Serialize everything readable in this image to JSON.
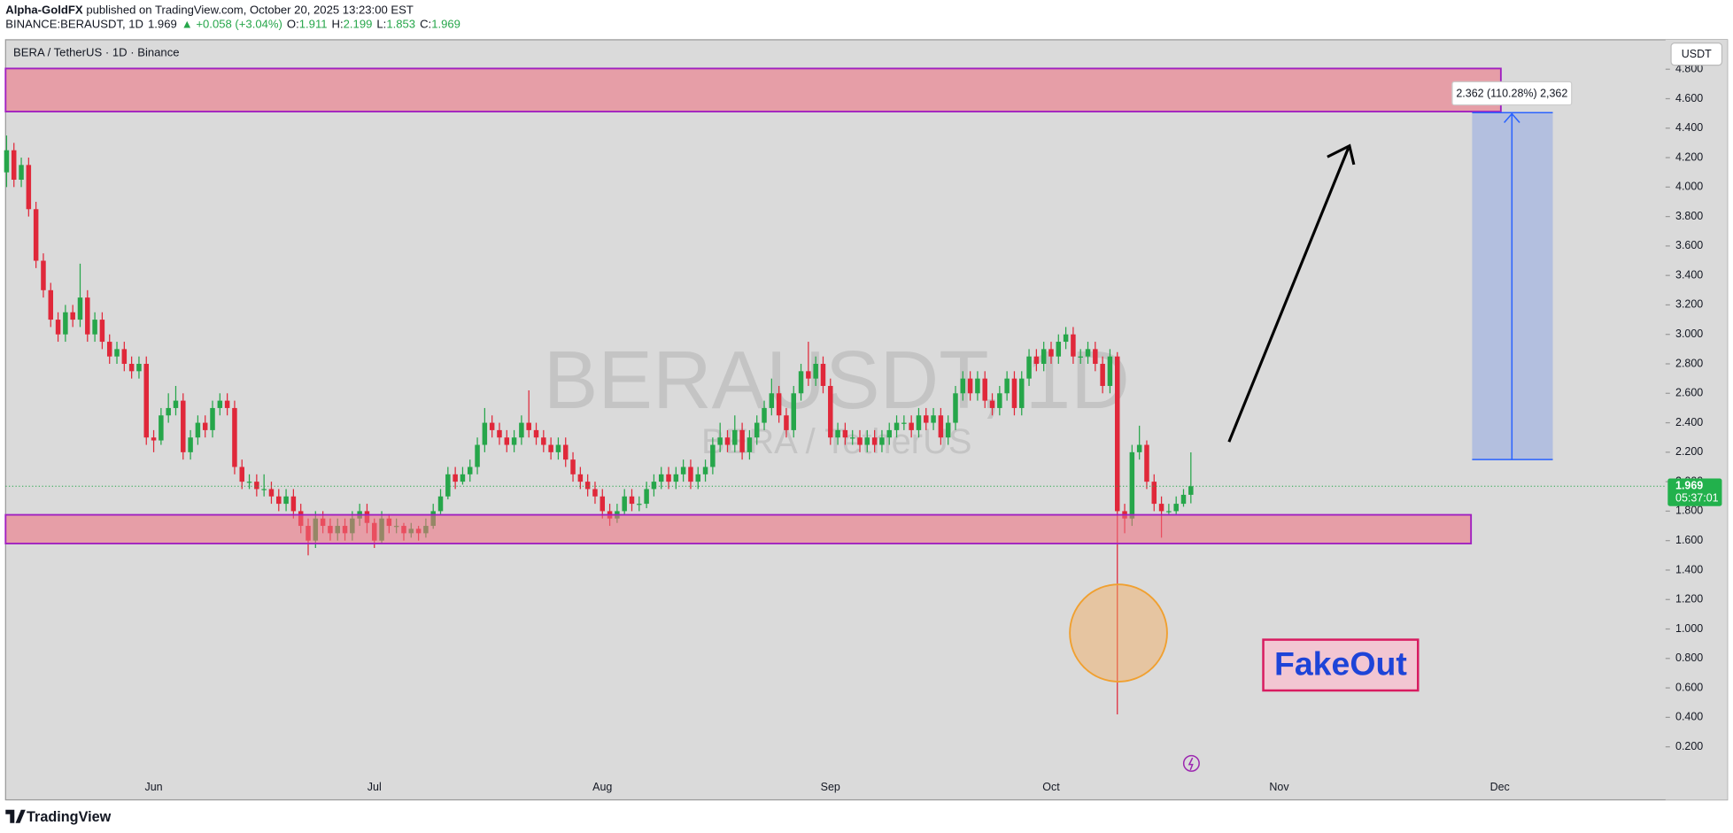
{
  "header": {
    "publisher": "Alpha-GoldFX",
    "published": "published on TradingView.com, October 20, 2025 13:23:00 EST",
    "symbol": "BINANCE:BERAUSDT, 1D",
    "change": "▲ +0.058 (+3.04%)",
    "ohlc_labels": [
      "O:",
      "H:",
      "L:",
      "C:"
    ]
  },
  "chart_data": {
    "type": "candlestick",
    "title": "BERA / TetherUS · 1D · Binance",
    "watermark": "BERAUSDT, 1D",
    "watermark_subtitle": "BERA / TetherUS",
    "currency": "USDT",
    "up_color": "#26a64a",
    "down_color": "#e0283a",
    "categories": [
      null,
      null,
      null,
      null,
      null,
      null,
      null,
      null,
      null,
      null,
      null,
      null,
      null,
      null,
      null,
      null,
      null,
      null,
      null,
      null,
      "Jun",
      null,
      null,
      null,
      null,
      null,
      null,
      null,
      null,
      null,
      null,
      null,
      null,
      null,
      null,
      null,
      null,
      null,
      null,
      null,
      null,
      null,
      null,
      null,
      null,
      null,
      null,
      null,
      null,
      null,
      "Jul",
      null,
      null,
      null,
      null,
      null,
      null,
      null,
      null,
      null,
      null,
      null,
      null,
      null,
      null,
      null,
      null,
      null,
      null,
      null,
      null,
      null,
      null,
      null,
      null,
      null,
      null,
      null,
      null,
      null,
      null,
      "Aug",
      null,
      null,
      null,
      null,
      null,
      null,
      null,
      null,
      null,
      null,
      null,
      null,
      null,
      null,
      null,
      null,
      null,
      null,
      null,
      null,
      null,
      null,
      null,
      null,
      null,
      null,
      null,
      null,
      null,
      null,
      "Sep",
      null,
      null,
      null,
      null,
      null,
      null,
      null,
      null,
      null,
      null,
      null,
      null,
      null,
      null,
      null,
      null,
      null,
      null,
      null,
      null,
      null,
      null,
      null,
      null,
      null,
      null,
      null,
      null,
      null,
      "Oct",
      null,
      null,
      null,
      null,
      null,
      null,
      null,
      null,
      null,
      null,
      null,
      null,
      null,
      null,
      null,
      null,
      null,
      null,
      null,
      null,
      null,
      null,
      null,
      null,
      null,
      null,
      null,
      null,
      null,
      null,
      "Nov",
      null,
      null,
      null,
      null,
      null,
      null,
      null,
      null,
      null,
      null,
      null,
      null,
      null,
      null,
      null,
      null,
      null,
      null,
      null,
      null,
      null,
      null,
      null,
      null,
      null,
      null,
      null,
      null,
      null,
      "Dec"
    ],
    "ohlc": [
      [
        4.1,
        4.35,
        4.0,
        4.25
      ],
      [
        4.25,
        4.3,
        4.0,
        4.05
      ],
      [
        4.05,
        4.2,
        4.0,
        4.15
      ],
      [
        4.15,
        4.2,
        3.8,
        3.85
      ],
      [
        3.85,
        3.9,
        3.45,
        3.5
      ],
      [
        3.5,
        3.55,
        3.25,
        3.3
      ],
      [
        3.3,
        3.35,
        3.05,
        3.1
      ],
      [
        3.1,
        3.15,
        2.95,
        3.0
      ],
      [
        3.0,
        3.2,
        2.95,
        3.15
      ],
      [
        3.15,
        3.2,
        3.05,
        3.1
      ],
      [
        3.1,
        3.48,
        3.05,
        3.25
      ],
      [
        3.25,
        3.3,
        2.95,
        3.0
      ],
      [
        3.0,
        3.15,
        2.95,
        3.1
      ],
      [
        3.1,
        3.15,
        2.9,
        2.95
      ],
      [
        2.95,
        3.0,
        2.8,
        2.85
      ],
      [
        2.85,
        2.95,
        2.8,
        2.9
      ],
      [
        2.9,
        2.95,
        2.75,
        2.8
      ],
      [
        2.8,
        2.85,
        2.7,
        2.75
      ],
      [
        2.75,
        2.85,
        2.7,
        2.8
      ],
      [
        2.8,
        2.85,
        2.25,
        2.3
      ],
      [
        2.3,
        2.35,
        2.2,
        2.28
      ],
      [
        2.28,
        2.5,
        2.25,
        2.45
      ],
      [
        2.45,
        2.6,
        2.4,
        2.5
      ],
      [
        2.5,
        2.65,
        2.45,
        2.55
      ],
      [
        2.55,
        2.6,
        2.15,
        2.2
      ],
      [
        2.2,
        2.35,
        2.15,
        2.3
      ],
      [
        2.3,
        2.45,
        2.25,
        2.4
      ],
      [
        2.4,
        2.45,
        2.3,
        2.35
      ],
      [
        2.35,
        2.55,
        2.3,
        2.5
      ],
      [
        2.5,
        2.6,
        2.45,
        2.55
      ],
      [
        2.55,
        2.6,
        2.45,
        2.5
      ],
      [
        2.5,
        2.55,
        2.05,
        2.1
      ],
      [
        2.1,
        2.15,
        1.95,
        2.0
      ],
      [
        2.0,
        2.05,
        1.95,
        2.0
      ],
      [
        2.0,
        2.05,
        1.9,
        1.95
      ],
      [
        1.95,
        2.05,
        1.9,
        1.95
      ],
      [
        1.95,
        2.0,
        1.85,
        1.9
      ],
      [
        1.9,
        1.95,
        1.8,
        1.85
      ],
      [
        1.85,
        1.95,
        1.8,
        1.9
      ],
      [
        1.9,
        1.95,
        1.75,
        1.8
      ],
      [
        1.8,
        1.85,
        1.65,
        1.7
      ],
      [
        1.7,
        1.75,
        1.5,
        1.6
      ],
      [
        1.6,
        1.8,
        1.55,
        1.75
      ],
      [
        1.75,
        1.8,
        1.65,
        1.7
      ],
      [
        1.7,
        1.75,
        1.6,
        1.65
      ],
      [
        1.65,
        1.75,
        1.6,
        1.7
      ],
      [
        1.7,
        1.75,
        1.6,
        1.65
      ],
      [
        1.65,
        1.8,
        1.6,
        1.75
      ],
      [
        1.75,
        1.85,
        1.7,
        1.8
      ],
      [
        1.8,
        1.85,
        1.65,
        1.72
      ],
      [
        1.72,
        1.75,
        1.55,
        1.6
      ],
      [
        1.6,
        1.8,
        1.58,
        1.75
      ],
      [
        1.75,
        1.78,
        1.65,
        1.7
      ],
      [
        1.7,
        1.75,
        1.65,
        1.7
      ],
      [
        1.7,
        1.72,
        1.6,
        1.65
      ],
      [
        1.65,
        1.72,
        1.62,
        1.68
      ],
      [
        1.68,
        1.7,
        1.6,
        1.65
      ],
      [
        1.65,
        1.75,
        1.62,
        1.7
      ],
      [
        1.7,
        1.85,
        1.68,
        1.8
      ],
      [
        1.8,
        1.95,
        1.78,
        1.9
      ],
      [
        1.9,
        2.1,
        1.88,
        2.05
      ],
      [
        2.05,
        2.1,
        1.95,
        2.0
      ],
      [
        2.0,
        2.1,
        1.98,
        2.05
      ],
      [
        2.05,
        2.15,
        2.0,
        2.1
      ],
      [
        2.1,
        2.3,
        2.05,
        2.25
      ],
      [
        2.25,
        2.5,
        2.2,
        2.4
      ],
      [
        2.4,
        2.45,
        2.3,
        2.35
      ],
      [
        2.35,
        2.4,
        2.25,
        2.3
      ],
      [
        2.3,
        2.35,
        2.2,
        2.25
      ],
      [
        2.25,
        2.35,
        2.2,
        2.3
      ],
      [
        2.3,
        2.45,
        2.25,
        2.4
      ],
      [
        2.4,
        2.62,
        2.3,
        2.35
      ],
      [
        2.35,
        2.4,
        2.25,
        2.3
      ],
      [
        2.3,
        2.35,
        2.2,
        2.25
      ],
      [
        2.25,
        2.3,
        2.15,
        2.2
      ],
      [
        2.2,
        2.3,
        2.15,
        2.25
      ],
      [
        2.25,
        2.3,
        2.1,
        2.15
      ],
      [
        2.15,
        2.2,
        2.0,
        2.05
      ],
      [
        2.05,
        2.1,
        1.95,
        2.0
      ],
      [
        2.0,
        2.05,
        1.9,
        1.95
      ],
      [
        1.95,
        2.0,
        1.85,
        1.9
      ],
      [
        1.9,
        1.95,
        1.75,
        1.8
      ],
      [
        1.8,
        1.85,
        1.7,
        1.75
      ],
      [
        1.75,
        1.85,
        1.72,
        1.8
      ],
      [
        1.8,
        1.95,
        1.78,
        1.9
      ],
      [
        1.9,
        1.95,
        1.8,
        1.85
      ],
      [
        1.85,
        1.9,
        1.8,
        1.85
      ],
      [
        1.85,
        2.0,
        1.82,
        1.95
      ],
      [
        1.95,
        2.05,
        1.9,
        2.0
      ],
      [
        2.0,
        2.1,
        1.95,
        2.05
      ],
      [
        2.05,
        2.1,
        1.95,
        2.0
      ],
      [
        2.0,
        2.1,
        1.95,
        2.05
      ],
      [
        2.05,
        2.15,
        2.0,
        2.1
      ],
      [
        2.1,
        2.15,
        1.95,
        2.0
      ],
      [
        2.0,
        2.1,
        1.95,
        2.05
      ],
      [
        2.05,
        2.15,
        2.0,
        2.1
      ],
      [
        2.1,
        2.3,
        2.05,
        2.25
      ],
      [
        2.25,
        2.4,
        2.2,
        2.3
      ],
      [
        2.3,
        2.35,
        2.2,
        2.25
      ],
      [
        2.25,
        2.45,
        2.2,
        2.35
      ],
      [
        2.35,
        2.4,
        2.15,
        2.2
      ],
      [
        2.2,
        2.35,
        2.15,
        2.3
      ],
      [
        2.3,
        2.45,
        2.25,
        2.4
      ],
      [
        2.4,
        2.55,
        2.35,
        2.5
      ],
      [
        2.5,
        2.7,
        2.45,
        2.6
      ],
      [
        2.6,
        2.65,
        2.4,
        2.45
      ],
      [
        2.45,
        2.5,
        2.3,
        2.35
      ],
      [
        2.35,
        2.65,
        2.3,
        2.6
      ],
      [
        2.6,
        2.8,
        2.55,
        2.75
      ],
      [
        2.75,
        2.95,
        2.65,
        2.7
      ],
      [
        2.7,
        2.85,
        2.65,
        2.8
      ],
      [
        2.8,
        2.85,
        2.6,
        2.65
      ],
      [
        2.65,
        2.7,
        2.25,
        2.3
      ],
      [
        2.3,
        2.4,
        2.25,
        2.35
      ],
      [
        2.35,
        2.4,
        2.25,
        2.3
      ],
      [
        2.3,
        2.35,
        2.25,
        2.3
      ],
      [
        2.3,
        2.35,
        2.2,
        2.25
      ],
      [
        2.25,
        2.35,
        2.2,
        2.3
      ],
      [
        2.3,
        2.35,
        2.2,
        2.25
      ],
      [
        2.25,
        2.35,
        2.2,
        2.3
      ],
      [
        2.3,
        2.4,
        2.25,
        2.35
      ],
      [
        2.35,
        2.45,
        2.3,
        2.4
      ],
      [
        2.4,
        2.45,
        2.35,
        2.4
      ],
      [
        2.4,
        2.45,
        2.3,
        2.35
      ],
      [
        2.35,
        2.5,
        2.3,
        2.45
      ],
      [
        2.45,
        2.5,
        2.35,
        2.4
      ],
      [
        2.4,
        2.5,
        2.35,
        2.45
      ],
      [
        2.45,
        2.5,
        2.25,
        2.3
      ],
      [
        2.3,
        2.45,
        2.25,
        2.4
      ],
      [
        2.4,
        2.65,
        2.35,
        2.6
      ],
      [
        2.6,
        2.75,
        2.55,
        2.7
      ],
      [
        2.7,
        2.75,
        2.55,
        2.6
      ],
      [
        2.6,
        2.75,
        2.55,
        2.7
      ],
      [
        2.7,
        2.75,
        2.5,
        2.55
      ],
      [
        2.55,
        2.6,
        2.45,
        2.5
      ],
      [
        2.5,
        2.65,
        2.45,
        2.6
      ],
      [
        2.6,
        2.75,
        2.55,
        2.7
      ],
      [
        2.7,
        2.75,
        2.45,
        2.5
      ],
      [
        2.5,
        2.75,
        2.45,
        2.7
      ],
      [
        2.7,
        2.9,
        2.65,
        2.85
      ],
      [
        2.85,
        2.9,
        2.75,
        2.8
      ],
      [
        2.8,
        2.95,
        2.75,
        2.9
      ],
      [
        2.9,
        2.95,
        2.8,
        2.85
      ],
      [
        2.85,
        3.0,
        2.8,
        2.95
      ],
      [
        2.95,
        3.05,
        2.9,
        3.0
      ],
      [
        3.0,
        3.05,
        2.8,
        2.85
      ],
      [
        2.85,
        2.9,
        2.8,
        2.85
      ],
      [
        2.85,
        2.95,
        2.8,
        2.9
      ],
      [
        2.9,
        2.95,
        2.75,
        2.8
      ],
      [
        2.8,
        2.85,
        2.6,
        2.65
      ],
      [
        2.65,
        2.9,
        2.6,
        2.85
      ],
      [
        2.85,
        2.88,
        0.42,
        1.8
      ],
      [
        1.8,
        1.85,
        1.65,
        1.75
      ],
      [
        1.75,
        2.25,
        1.7,
        2.2
      ],
      [
        2.2,
        2.38,
        2.15,
        2.25
      ],
      [
        2.25,
        2.28,
        1.95,
        2.0
      ],
      [
        2.0,
        2.05,
        1.8,
        1.85
      ],
      [
        1.85,
        1.9,
        1.62,
        1.8
      ],
      [
        1.8,
        1.85,
        1.78,
        1.8
      ],
      [
        1.8,
        1.9,
        1.78,
        1.85
      ],
      [
        1.85,
        1.95,
        1.83,
        1.911
      ],
      [
        1.911,
        2.199,
        1.853,
        1.969
      ],
      null,
      null,
      null,
      null,
      null,
      null,
      null,
      null,
      null,
      null,
      null,
      null,
      null,
      null,
      null,
      null,
      null,
      null,
      null,
      null,
      null,
      null,
      null,
      null,
      null,
      null,
      null,
      null,
      null,
      null,
      null,
      null,
      null,
      null,
      null,
      null,
      null,
      null,
      null,
      null,
      null,
      null
    ],
    "ylim": [
      -0.16,
      5.0
    ],
    "yticks": [
      {
        "value": 0.2,
        "label": "0.200"
      },
      {
        "value": 0.4,
        "label": "0.400"
      },
      {
        "value": 0.6,
        "label": "0.600"
      },
      {
        "value": 0.8,
        "label": "0.800"
      },
      {
        "value": 1.0,
        "label": "1.000"
      },
      {
        "value": 1.2,
        "label": "1.200"
      },
      {
        "value": 1.4,
        "label": "1.400"
      },
      {
        "value": 1.6,
        "label": "1.600"
      },
      {
        "value": 1.8,
        "label": "1.800"
      },
      {
        "value": 2.0,
        "label": "2.000"
      },
      {
        "value": 2.2,
        "label": "2.200"
      },
      {
        "value": 2.4,
        "label": "2.400"
      },
      {
        "value": 2.6,
        "label": "2.600"
      },
      {
        "value": 2.8,
        "label": "2.800"
      },
      {
        "value": 3.0,
        "label": "3.000"
      },
      {
        "value": 3.2,
        "label": "3.200"
      },
      {
        "value": 3.4,
        "label": "3.400"
      },
      {
        "value": 3.6,
        "label": "3.600"
      },
      {
        "value": 3.8,
        "label": "3.800"
      },
      {
        "value": 4.0,
        "label": "4.000"
      },
      {
        "value": 4.2,
        "label": "4.200"
      },
      {
        "value": 4.4,
        "label": "4.400"
      },
      {
        "value": 4.6,
        "label": "4.600"
      },
      {
        "value": 4.8,
        "label": "4.800"
      }
    ],
    "countdown": "05:37:01",
    "annotations": {
      "measure": "2.362 (110.28%) 2,362",
      "label": "FakeOut"
    }
  },
  "footer": {
    "brand": "TradingView"
  }
}
